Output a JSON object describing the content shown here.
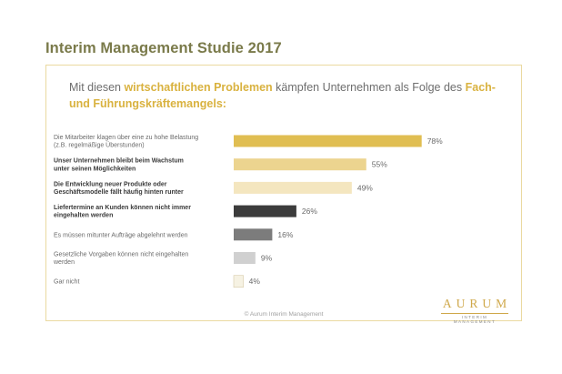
{
  "page_title": "Interim Management Studie 2017",
  "headline": {
    "part1": "Mit diesen ",
    "highlight1": "wirtschaftlichen Problemen",
    "part2": " kämpfen Unternehmen als Folge des ",
    "highlight2": "Fach- und Führungskräftemangels:"
  },
  "footer": "© Aurum Interim Management",
  "logo": {
    "word": "AURUM",
    "sub": "INTERIM MANAGEMENT"
  },
  "chart_data": {
    "type": "bar",
    "orientation": "horizontal",
    "categories": [
      [
        "Die Mitarbeiter klagen über eine zu hohe Belastung",
        "(z.B. regelmäßige Überstunden)"
      ],
      [
        "Unser Unternehmen bleibt beim Wachstum",
        "unter seinen Möglichkeiten"
      ],
      [
        "Die Entwicklung neuer Produkte oder",
        "Geschäftsmodelle fällt häufig hinten runter"
      ],
      [
        "Liefertermine an Kunden können nicht immer",
        "eingehalten werden"
      ],
      [
        "Es müssen mitunter Aufträge abgelehnt werden"
      ],
      [
        "Gesetzliche Vorgaben können nicht eingehalten",
        "werden"
      ],
      [
        "Gar nicht"
      ]
    ],
    "bold_labels": [
      false,
      true,
      true,
      true,
      false,
      false,
      false
    ],
    "values": [
      78,
      55,
      49,
      26,
      16,
      9,
      4
    ],
    "value_labels": [
      "78%",
      "55%",
      "49%",
      "26%",
      "16%",
      "9%",
      "4%"
    ],
    "colors": [
      "#e0be52",
      "#ecd48f",
      "#f4e6bf",
      "#3c3c3c",
      "#7c7c7c",
      "#d0d0d0",
      "#f6f2e3"
    ],
    "xlim": [
      0,
      100
    ],
    "grid": false
  }
}
